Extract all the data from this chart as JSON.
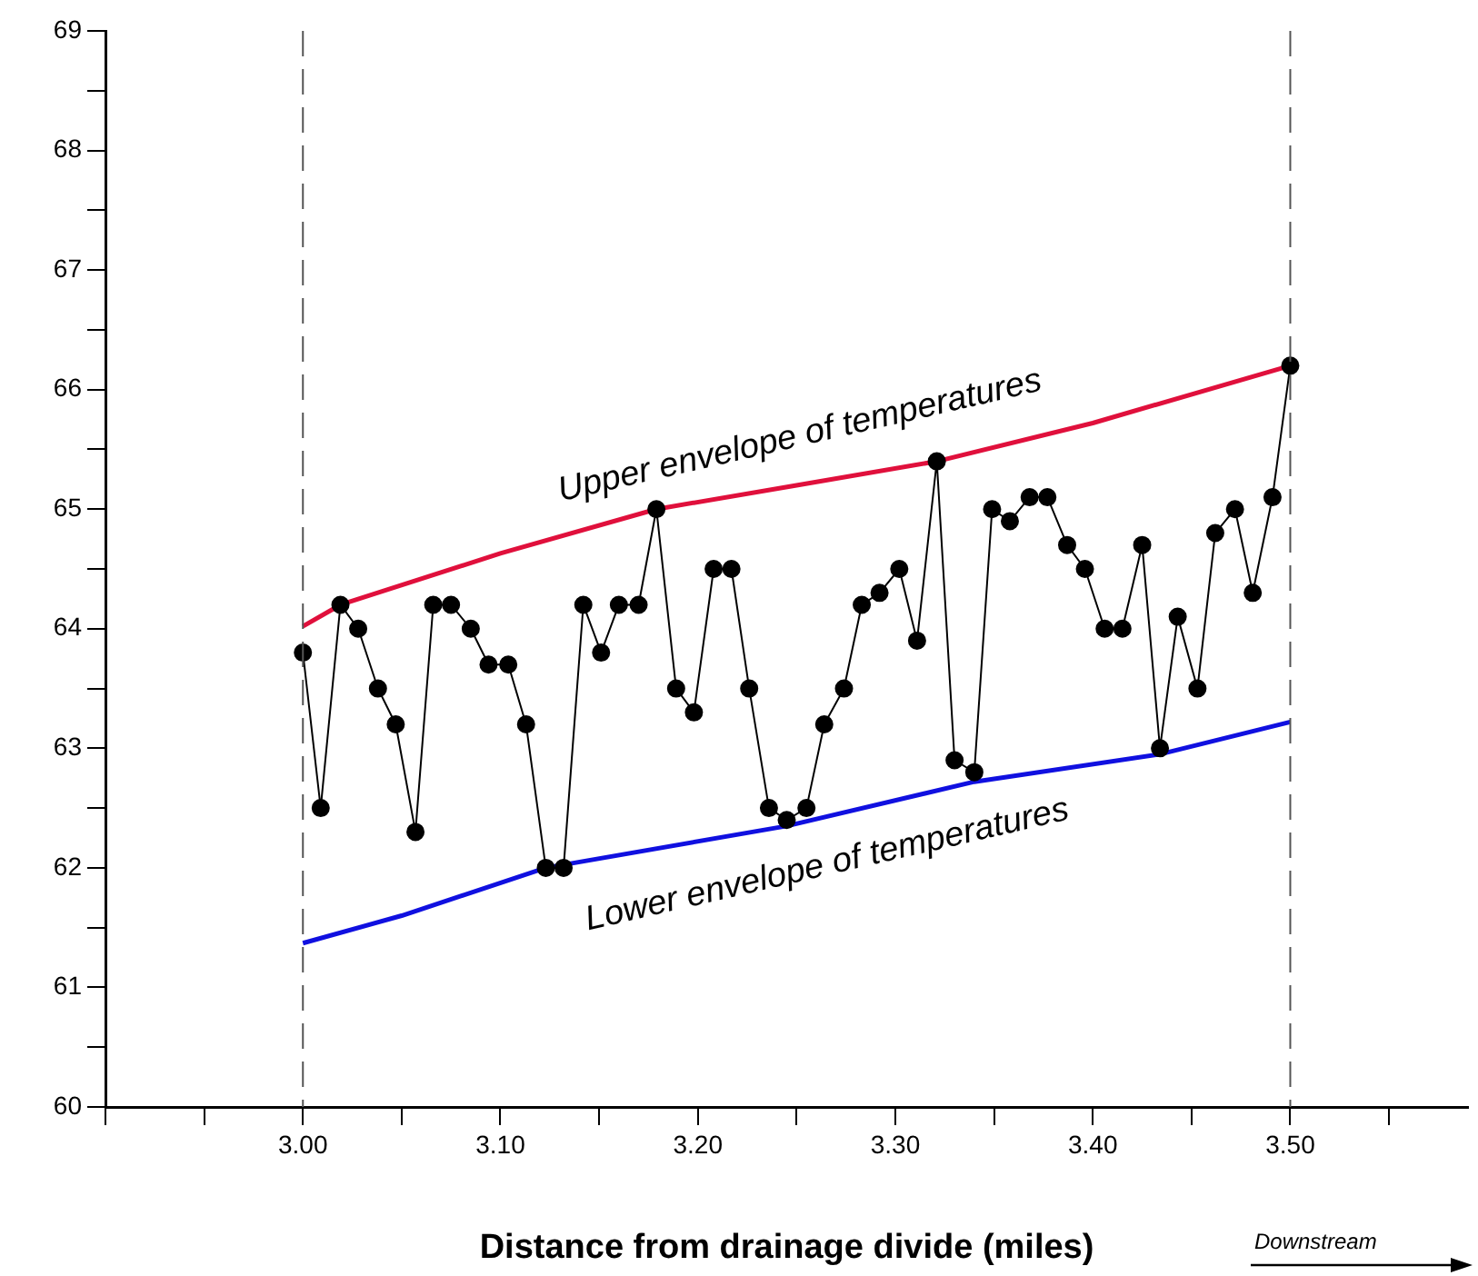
{
  "chart_data": {
    "type": "line",
    "xlabel": "Distance from drainage divide (miles)",
    "xlim": [
      2.9,
      3.59
    ],
    "xticks": [
      {
        "value": 2.9,
        "label": null
      },
      {
        "value": 2.95,
        "label": null
      },
      {
        "value": 3.0,
        "label": "3.00"
      },
      {
        "value": 3.05,
        "label": null
      },
      {
        "value": 3.1,
        "label": "3.10"
      },
      {
        "value": 3.15,
        "label": null
      },
      {
        "value": 3.2,
        "label": "3.20"
      },
      {
        "value": 3.25,
        "label": null
      },
      {
        "value": 3.3,
        "label": "3.30"
      },
      {
        "value": 3.35,
        "label": null
      },
      {
        "value": 3.4,
        "label": "3.40"
      },
      {
        "value": 3.45,
        "label": null
      },
      {
        "value": 3.5,
        "label": "3.50"
      },
      {
        "value": 3.55,
        "label": null
      }
    ],
    "ylim": [
      60,
      69
    ],
    "yticks": [
      60,
      {
        "value": 60.5,
        "label": null
      },
      61,
      {
        "value": 61.5,
        "label": null
      },
      62,
      {
        "value": 62.5,
        "label": null
      },
      63,
      {
        "value": 63.5,
        "label": null
      },
      64,
      {
        "value": 64.5,
        "label": null
      },
      65,
      {
        "value": 65.5,
        "label": null
      },
      66,
      {
        "value": 66.5,
        "label": null
      },
      67,
      {
        "value": 67.5,
        "label": null
      },
      68,
      {
        "value": 68.5,
        "label": null
      },
      69
    ],
    "grid": false,
    "legend": false,
    "series": [
      {
        "color": "#000000",
        "marker": "circle",
        "x": [
          3.0,
          3.009,
          3.019,
          3.028,
          3.038,
          3.047,
          3.057,
          3.066,
          3.075,
          3.085,
          3.094,
          3.104,
          3.113,
          3.123,
          3.132,
          3.142,
          3.151,
          3.16,
          3.17,
          3.179,
          3.189,
          3.198,
          3.208,
          3.217,
          3.226,
          3.236,
          3.245,
          3.255,
          3.264,
          3.274,
          3.283,
          3.292,
          3.302,
          3.311,
          3.321,
          3.33,
          3.34,
          3.349,
          3.358,
          3.368,
          3.377,
          3.387,
          3.396,
          3.406,
          3.415,
          3.425,
          3.434,
          3.443,
          3.453,
          3.462,
          3.472,
          3.481,
          3.491,
          3.5
        ],
        "values": [
          63.8,
          62.5,
          64.2,
          64.0,
          63.5,
          63.2,
          62.3,
          64.2,
          64.2,
          64.0,
          63.7,
          63.7,
          63.2,
          62.0,
          62.0,
          64.2,
          63.8,
          64.2,
          64.2,
          65.0,
          63.5,
          63.3,
          64.5,
          64.5,
          63.5,
          62.5,
          62.4,
          62.5,
          63.2,
          63.5,
          64.2,
          64.3,
          64.5,
          63.9,
          65.4,
          62.9,
          62.8,
          65.0,
          64.9,
          65.1,
          65.1,
          64.7,
          64.5,
          64.0,
          64.0,
          64.7,
          63.0,
          64.1,
          63.5,
          64.8,
          65.0,
          64.3,
          65.1,
          66.2
        ]
      },
      {
        "color": "#e0103c",
        "marker": "none",
        "x": [
          3.0,
          3.019,
          3.1,
          3.179,
          3.25,
          3.321,
          3.4,
          3.5
        ],
        "values": [
          64.02,
          64.2,
          64.63,
          65.0,
          65.2,
          65.4,
          65.72,
          66.2
        ]
      },
      {
        "color": "#1010e0",
        "marker": "none",
        "x": [
          3.0,
          3.05,
          3.123,
          3.245,
          3.34,
          3.434,
          3.5
        ],
        "values": [
          61.37,
          61.6,
          62.0,
          62.35,
          62.72,
          62.95,
          63.22
        ]
      }
    ],
    "ref_lines": [
      {
        "axis": "x",
        "value": 3.0,
        "line_style": "dashed",
        "color": "#555555"
      },
      {
        "axis": "x",
        "value": 3.5,
        "line_style": "dashed",
        "color": "#555555"
      }
    ],
    "annotations": [
      "Upper envelope of temperatures",
      "Lower envelope of temperatures",
      "Downstream"
    ]
  }
}
